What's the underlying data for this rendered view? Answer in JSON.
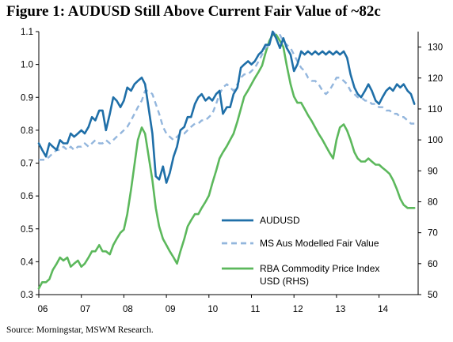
{
  "header": {
    "title": "Figure 1:  AUDUSD Still Above Current Fair Value of ~82c"
  },
  "footer": {
    "source": "Source: Morningstar, MSWM Research."
  },
  "colors": {
    "audusd": "#1f6fa8",
    "fair_value": "#93b6dd",
    "commodity": "#5cb85c",
    "axis": "#000000"
  },
  "chart_data": {
    "type": "line",
    "title": "",
    "xlabel": "",
    "ylabel": "",
    "grid": false,
    "legend_position": "bottom-center",
    "x_tick_labels": [
      "06",
      "07",
      "08",
      "09",
      "10",
      "11",
      "12",
      "13",
      "14"
    ],
    "x_range": [
      2006.0,
      2014.92
    ],
    "y_left": {
      "range": [
        0.3,
        1.1
      ],
      "ticks": [
        0.3,
        0.4,
        0.5,
        0.6,
        0.7,
        0.8,
        0.9,
        1.0,
        1.1
      ],
      "tick_labels": [
        "0.3",
        "0.4",
        "0.5",
        "0.6",
        "0.7",
        "0.8",
        "0.9",
        "1.0",
        "1.1"
      ]
    },
    "y_right": {
      "range": [
        50,
        135
      ],
      "ticks": [
        50,
        60,
        70,
        80,
        90,
        100,
        110,
        120,
        130
      ],
      "tick_labels": [
        "50",
        "60",
        "70",
        "80",
        "90",
        "100",
        "110",
        "120",
        "130"
      ]
    },
    "series": [
      {
        "name": "AUDUSD",
        "axis": "left",
        "style": "solid",
        "x": [
          2006.0,
          2006.08,
          2006.17,
          2006.25,
          2006.33,
          2006.42,
          2006.5,
          2006.58,
          2006.67,
          2006.75,
          2006.83,
          2006.92,
          2007.0,
          2007.08,
          2007.17,
          2007.25,
          2007.33,
          2007.42,
          2007.5,
          2007.58,
          2007.67,
          2007.75,
          2007.83,
          2007.92,
          2008.0,
          2008.08,
          2008.17,
          2008.25,
          2008.33,
          2008.42,
          2008.5,
          2008.58,
          2008.67,
          2008.75,
          2008.83,
          2008.92,
          2009.0,
          2009.08,
          2009.17,
          2009.25,
          2009.33,
          2009.42,
          2009.5,
          2009.58,
          2009.67,
          2009.75,
          2009.83,
          2009.92,
          2010.0,
          2010.08,
          2010.17,
          2010.25,
          2010.33,
          2010.42,
          2010.5,
          2010.58,
          2010.67,
          2010.75,
          2010.83,
          2010.92,
          2011.0,
          2011.08,
          2011.17,
          2011.25,
          2011.33,
          2011.42,
          2011.5,
          2011.58,
          2011.67,
          2011.75,
          2011.83,
          2011.92,
          2012.0,
          2012.08,
          2012.17,
          2012.25,
          2012.33,
          2012.42,
          2012.5,
          2012.58,
          2012.67,
          2012.75,
          2012.83,
          2012.92,
          2013.0,
          2013.08,
          2013.17,
          2013.25,
          2013.33,
          2013.42,
          2013.5,
          2013.58,
          2013.67,
          2013.75,
          2013.83,
          2013.92,
          2014.0,
          2014.08,
          2014.17,
          2014.25,
          2014.33,
          2014.42,
          2014.5,
          2014.58,
          2014.67,
          2014.75,
          2014.83
        ],
        "values": [
          0.76,
          0.74,
          0.72,
          0.76,
          0.75,
          0.74,
          0.77,
          0.76,
          0.76,
          0.79,
          0.78,
          0.79,
          0.8,
          0.79,
          0.81,
          0.84,
          0.83,
          0.86,
          0.86,
          0.8,
          0.85,
          0.9,
          0.89,
          0.87,
          0.89,
          0.93,
          0.92,
          0.94,
          0.95,
          0.96,
          0.94,
          0.87,
          0.79,
          0.66,
          0.65,
          0.69,
          0.64,
          0.67,
          0.72,
          0.75,
          0.8,
          0.81,
          0.84,
          0.84,
          0.88,
          0.9,
          0.91,
          0.89,
          0.9,
          0.89,
          0.91,
          0.92,
          0.85,
          0.87,
          0.87,
          0.91,
          0.93,
          0.99,
          1.0,
          1.01,
          1.0,
          1.01,
          1.03,
          1.04,
          1.06,
          1.06,
          1.1,
          1.08,
          1.05,
          1.08,
          1.05,
          1.03,
          0.98,
          1.0,
          1.04,
          1.03,
          1.04,
          1.03,
          1.04,
          1.03,
          1.04,
          1.03,
          1.04,
          1.03,
          1.04,
          1.03,
          1.04,
          1.02,
          0.97,
          0.93,
          0.91,
          0.9,
          0.92,
          0.94,
          0.92,
          0.89,
          0.88,
          0.9,
          0.92,
          0.93,
          0.92,
          0.94,
          0.93,
          0.94,
          0.92,
          0.91,
          0.88
        ]
      },
      {
        "name": "MS Aus Modelled Fair Value",
        "axis": "left",
        "style": "dashed",
        "x": [
          2006.0,
          2006.08,
          2006.17,
          2006.25,
          2006.33,
          2006.42,
          2006.5,
          2006.58,
          2006.67,
          2006.75,
          2006.83,
          2006.92,
          2007.0,
          2007.08,
          2007.17,
          2007.25,
          2007.33,
          2007.42,
          2007.5,
          2007.58,
          2007.67,
          2007.75,
          2007.83,
          2007.92,
          2008.0,
          2008.08,
          2008.17,
          2008.25,
          2008.33,
          2008.42,
          2008.5,
          2008.58,
          2008.67,
          2008.75,
          2008.83,
          2008.92,
          2009.0,
          2009.08,
          2009.17,
          2009.25,
          2009.33,
          2009.42,
          2009.5,
          2009.58,
          2009.67,
          2009.75,
          2009.83,
          2009.92,
          2010.0,
          2010.08,
          2010.17,
          2010.25,
          2010.33,
          2010.42,
          2010.5,
          2010.58,
          2010.67,
          2010.75,
          2010.83,
          2010.92,
          2011.0,
          2011.08,
          2011.17,
          2011.25,
          2011.33,
          2011.42,
          2011.5,
          2011.58,
          2011.67,
          2011.75,
          2011.83,
          2011.92,
          2012.0,
          2012.08,
          2012.17,
          2012.25,
          2012.33,
          2012.42,
          2012.5,
          2012.58,
          2012.67,
          2012.75,
          2012.83,
          2012.92,
          2013.0,
          2013.08,
          2013.17,
          2013.25,
          2013.33,
          2013.42,
          2013.5,
          2013.58,
          2013.67,
          2013.75,
          2013.83,
          2013.92,
          2014.0,
          2014.08,
          2014.17,
          2014.25,
          2014.33,
          2014.42,
          2014.5,
          2014.58,
          2014.67,
          2014.75,
          2014.83
        ],
        "values": [
          0.71,
          0.71,
          0.71,
          0.72,
          0.73,
          0.74,
          0.74,
          0.75,
          0.74,
          0.75,
          0.74,
          0.75,
          0.75,
          0.76,
          0.75,
          0.76,
          0.77,
          0.76,
          0.76,
          0.77,
          0.76,
          0.77,
          0.78,
          0.79,
          0.8,
          0.81,
          0.83,
          0.85,
          0.87,
          0.89,
          0.92,
          0.92,
          0.91,
          0.88,
          0.85,
          0.81,
          0.79,
          0.78,
          0.77,
          0.78,
          0.79,
          0.79,
          0.8,
          0.81,
          0.82,
          0.82,
          0.83,
          0.83,
          0.84,
          0.85,
          0.88,
          0.91,
          0.93,
          0.94,
          0.93,
          0.92,
          0.94,
          0.96,
          0.97,
          0.97,
          0.98,
          0.99,
          1.01,
          1.03,
          1.05,
          1.06,
          1.1,
          1.09,
          1.09,
          1.07,
          1.06,
          1.05,
          1.03,
          1.01,
          0.99,
          0.98,
          0.96,
          0.95,
          0.95,
          0.94,
          0.92,
          0.91,
          0.92,
          0.94,
          0.96,
          0.96,
          0.95,
          0.94,
          0.92,
          0.91,
          0.9,
          0.9,
          0.89,
          0.89,
          0.88,
          0.88,
          0.87,
          0.87,
          0.86,
          0.86,
          0.85,
          0.85,
          0.84,
          0.84,
          0.83,
          0.82,
          0.82
        ]
      },
      {
        "name": "RBA Commodity Price Index USD (RHS)",
        "axis": "right",
        "style": "solid",
        "x": [
          2006.0,
          2006.08,
          2006.17,
          2006.25,
          2006.33,
          2006.42,
          2006.5,
          2006.58,
          2006.67,
          2006.75,
          2006.83,
          2006.92,
          2007.0,
          2007.08,
          2007.17,
          2007.25,
          2007.33,
          2007.42,
          2007.5,
          2007.58,
          2007.67,
          2007.75,
          2007.83,
          2007.92,
          2008.0,
          2008.08,
          2008.17,
          2008.25,
          2008.33,
          2008.42,
          2008.5,
          2008.58,
          2008.67,
          2008.75,
          2008.83,
          2008.92,
          2009.0,
          2009.08,
          2009.17,
          2009.25,
          2009.33,
          2009.42,
          2009.5,
          2009.58,
          2009.67,
          2009.75,
          2009.83,
          2009.92,
          2010.0,
          2010.08,
          2010.17,
          2010.25,
          2010.33,
          2010.42,
          2010.5,
          2010.58,
          2010.67,
          2010.75,
          2010.83,
          2010.92,
          2011.0,
          2011.08,
          2011.17,
          2011.25,
          2011.33,
          2011.42,
          2011.5,
          2011.58,
          2011.67,
          2011.75,
          2011.83,
          2011.92,
          2012.0,
          2012.08,
          2012.17,
          2012.25,
          2012.33,
          2012.42,
          2012.5,
          2012.58,
          2012.67,
          2012.75,
          2012.83,
          2012.92,
          2013.0,
          2013.08,
          2013.17,
          2013.25,
          2013.33,
          2013.42,
          2013.5,
          2013.58,
          2013.67,
          2013.75,
          2013.83,
          2013.92,
          2014.0,
          2014.08,
          2014.17,
          2014.25,
          2014.33,
          2014.42,
          2014.5,
          2014.58,
          2014.67,
          2014.75,
          2014.83
        ],
        "values": [
          52,
          54,
          54,
          55,
          58,
          60,
          62,
          61,
          62,
          59,
          60,
          61,
          59,
          60,
          62,
          64,
          64,
          66,
          64,
          64,
          63,
          66,
          68,
          70,
          71,
          76,
          84,
          92,
          100,
          104,
          102,
          95,
          87,
          78,
          72,
          68,
          66,
          64,
          62,
          60,
          64,
          68,
          72,
          74,
          76,
          76,
          78,
          80,
          82,
          86,
          90,
          94,
          96,
          98,
          100,
          102,
          106,
          110,
          114,
          116,
          118,
          120,
          122,
          124,
          128,
          132,
          134,
          134,
          132,
          130,
          124,
          118,
          114,
          112,
          112,
          110,
          108,
          106,
          104,
          102,
          100,
          98,
          96,
          94,
          100,
          104,
          105,
          103,
          100,
          96,
          94,
          93,
          93,
          94,
          93,
          92,
          92,
          91,
          90,
          89,
          87,
          84,
          81,
          79,
          78,
          78,
          78
        ]
      }
    ],
    "legend": [
      {
        "label": "AUDUSD"
      },
      {
        "label": "MS Aus Modelled Fair Value"
      },
      {
        "label_lines": [
          "RBA Commodity Price Index",
          "USD (RHS)"
        ]
      }
    ]
  }
}
